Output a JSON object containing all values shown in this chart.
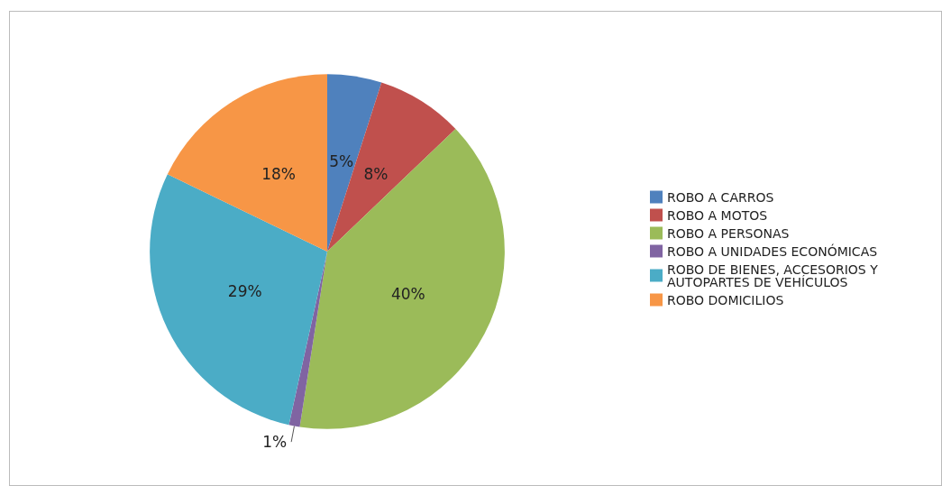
{
  "chart_data": {
    "type": "pie",
    "categories": [
      "ROBO A CARROS",
      "ROBO A MOTOS",
      "ROBO A PERSONAS",
      "ROBO A UNIDADES ECONÓMICAS",
      "ROBO DE BIENES, ACCESORIOS Y AUTOPARTES DE VEHÍCULOS",
      "ROBO DOMICILIOS"
    ],
    "values": [
      5,
      8,
      40,
      1,
      29,
      18
    ],
    "colors": [
      "#4f81bd",
      "#c0504d",
      "#9bbb59",
      "#8064a2",
      "#4bacc6",
      "#f79646"
    ],
    "value_labels": [
      "5%",
      "8%",
      "40%",
      "1%",
      "29%",
      "18%"
    ],
    "legend": "right"
  }
}
